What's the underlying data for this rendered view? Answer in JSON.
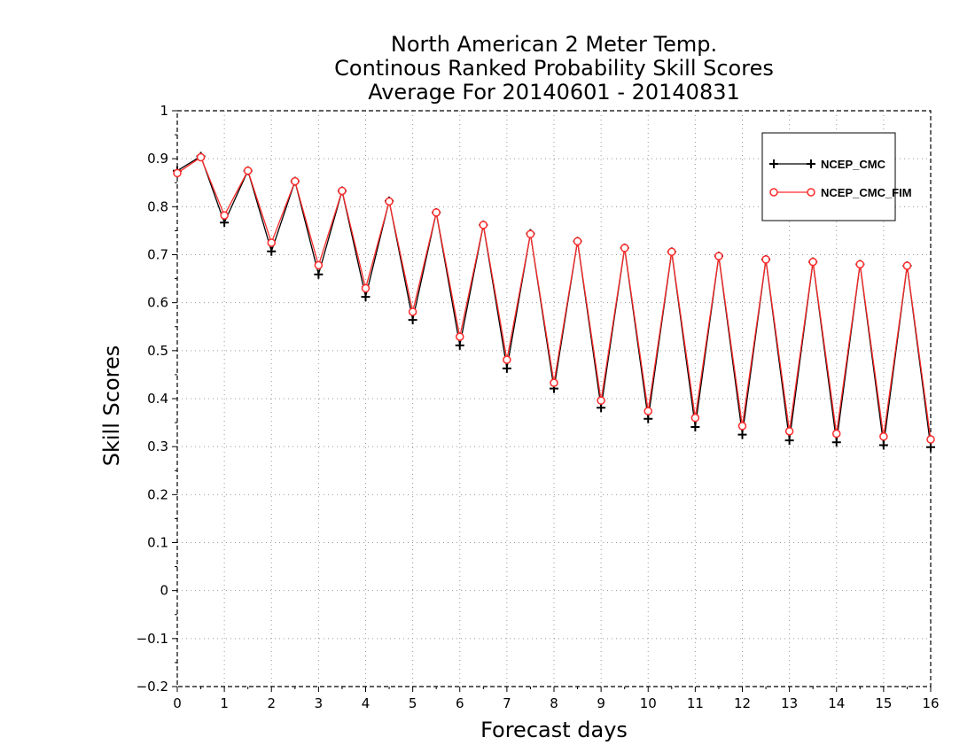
{
  "chart_data": {
    "type": "line",
    "title": [
      "North American 2 Meter Temp.",
      "Continous Ranked Probability Skill Scores",
      "Average For 20140601 - 20140831"
    ],
    "xlabel": "Forecast days",
    "ylabel": "Skill Scores",
    "xlim": [
      0,
      16
    ],
    "ylim": [
      -0.2,
      1
    ],
    "xticks": [
      0,
      1,
      2,
      3,
      4,
      5,
      6,
      7,
      8,
      9,
      10,
      11,
      12,
      13,
      14,
      15,
      16
    ],
    "xtick_labels": [
      "0",
      "1",
      "2",
      "3",
      "4",
      "5",
      "6",
      "7",
      "8",
      "9",
      "10",
      "11",
      "12",
      "13",
      "14",
      "15",
      "16"
    ],
    "yticks": [
      -0.2,
      -0.1,
      0,
      0.1,
      0.2,
      0.3,
      0.4,
      0.5,
      0.6,
      0.7,
      0.8,
      0.9,
      1
    ],
    "ytick_labels": [
      "−0.2",
      "−0.1",
      "0",
      "0.1",
      "0.2",
      "0.3",
      "0.4",
      "0.5",
      "0.6",
      "0.7",
      "0.8",
      "0.9",
      "1"
    ],
    "grid": true,
    "legend_position": "top-right",
    "x": [
      0,
      0.5,
      1,
      1.5,
      2,
      2.5,
      3,
      3.5,
      4,
      4.5,
      5,
      5.5,
      6,
      6.5,
      7,
      7.5,
      8,
      8.5,
      9,
      9.5,
      10,
      10.5,
      11,
      11.5,
      12,
      12.5,
      13,
      13.5,
      14,
      14.5,
      15,
      15.5,
      16
    ],
    "series": [
      {
        "name": "NCEP_CMC",
        "color": "#000000",
        "marker": "plus",
        "values": [
          0.875,
          0.905,
          0.767,
          0.875,
          0.707,
          0.853,
          0.659,
          0.833,
          0.612,
          0.812,
          0.564,
          0.788,
          0.511,
          0.762,
          0.463,
          0.744,
          0.421,
          0.728,
          0.381,
          0.714,
          0.358,
          0.706,
          0.341,
          0.697,
          0.325,
          0.69,
          0.313,
          0.685,
          0.309,
          0.68,
          0.303,
          0.677,
          0.299
        ]
      },
      {
        "name": "NCEP_CMC_FIM",
        "color": "#ff2a2a",
        "marker": "circle",
        "values": [
          0.87,
          0.903,
          0.782,
          0.875,
          0.725,
          0.853,
          0.678,
          0.833,
          0.63,
          0.811,
          0.581,
          0.788,
          0.529,
          0.762,
          0.481,
          0.743,
          0.433,
          0.728,
          0.396,
          0.714,
          0.374,
          0.706,
          0.36,
          0.697,
          0.343,
          0.69,
          0.332,
          0.685,
          0.327,
          0.68,
          0.321,
          0.677,
          0.315
        ]
      }
    ]
  }
}
